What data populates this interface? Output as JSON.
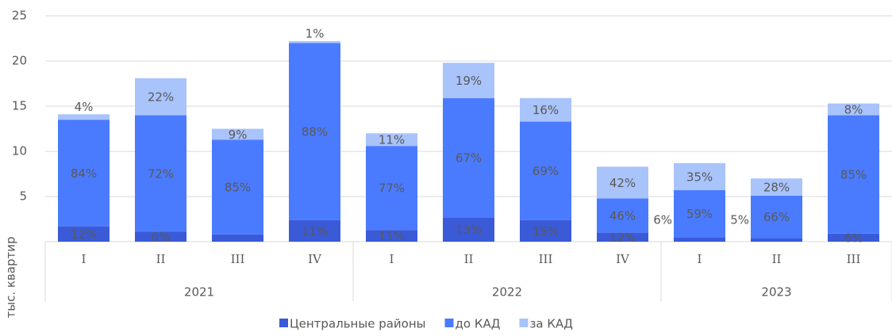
{
  "chart_data": {
    "type": "stacked_bar",
    "y_axis_label": "тыс. квартир",
    "categories": [
      "I",
      "II",
      "III",
      "IV",
      "I",
      "II",
      "III",
      "IV",
      "I",
      "II",
      "III"
    ],
    "groups": [
      {
        "label": "2021",
        "span": 4
      },
      {
        "label": "2022",
        "span": 4
      },
      {
        "label": "2023",
        "span": 3
      }
    ],
    "series": [
      {
        "name": "Центральные районы",
        "color": "#3a5ad8",
        "values": [
          1.7,
          1.1,
          0.8,
          2.4,
          1.3,
          2.7,
          2.4,
          1.0,
          0.5,
          0.4,
          0.9
        ],
        "share_labels": [
          "12%",
          "6%",
          null,
          "11%",
          "11%",
          "13%",
          "15%",
          "12%",
          "6%",
          "5%",
          "6%"
        ]
      },
      {
        "name": "до КАД",
        "color": "#4a7bff",
        "values": [
          11.8,
          12.9,
          10.5,
          19.6,
          9.3,
          13.2,
          10.9,
          3.8,
          5.2,
          4.7,
          13.1
        ],
        "share_labels": [
          "84%",
          "72%",
          "85%",
          "88%",
          "77%",
          "67%",
          "69%",
          "46%",
          "59%",
          "66%",
          "85%"
        ]
      },
      {
        "name": "за КАД",
        "color": "#a9c3fb",
        "values": [
          0.6,
          4.1,
          1.2,
          0.2,
          1.4,
          3.9,
          2.6,
          3.5,
          3.0,
          1.9,
          1.3
        ],
        "share_labels": [
          "4%",
          "22%",
          "9%",
          "1%",
          "11%",
          "19%",
          "16%",
          "42%",
          "35%",
          "28%",
          "8%"
        ]
      }
    ],
    "ylim": [
      0,
      25
    ],
    "yticks": [
      5,
      10,
      15,
      20,
      25
    ],
    "grid": true
  }
}
